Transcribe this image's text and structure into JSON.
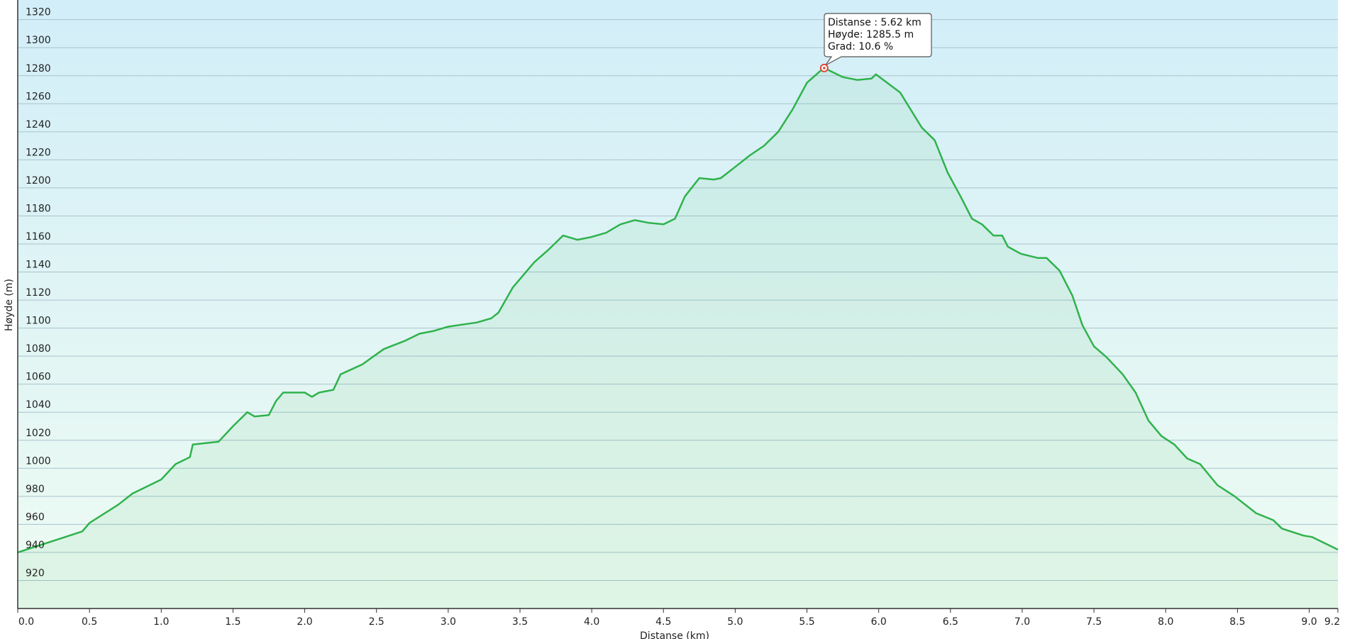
{
  "chart_data": {
    "type": "area",
    "y_label": "Høyde (m)",
    "x_label": "Distanse  (km)",
    "x": [
      0.0,
      0.3,
      0.45,
      0.5,
      0.7,
      0.8,
      1.0,
      1.1,
      1.2,
      1.22,
      1.4,
      1.5,
      1.6,
      1.65,
      1.75,
      1.8,
      1.85,
      2.0,
      2.05,
      2.1,
      2.2,
      2.25,
      2.4,
      2.55,
      2.6,
      2.7,
      2.8,
      2.9,
      3.0,
      3.2,
      3.3,
      3.35,
      3.45,
      3.5,
      3.6,
      3.7,
      3.75,
      3.8,
      3.9,
      4.0,
      4.1,
      4.2,
      4.3,
      4.4,
      4.5,
      4.58,
      4.65,
      4.75,
      4.85,
      4.9,
      5.0,
      5.1,
      5.2,
      5.3,
      5.4,
      5.5,
      5.6,
      5.62,
      5.75,
      5.85,
      5.95,
      5.98,
      6.15,
      6.3,
      6.39,
      6.48,
      6.57,
      6.65,
      6.72,
      6.8,
      6.86,
      6.9,
      6.99,
      7.11,
      7.17,
      7.26,
      7.35,
      7.42,
      7.5,
      7.59,
      7.7,
      7.79,
      7.88,
      7.97,
      8.06,
      8.15,
      8.24,
      8.36,
      8.48,
      8.63,
      8.75,
      8.81,
      8.96,
      9.02,
      9.2
    ],
    "values": [
      940,
      950,
      955,
      961,
      974,
      982,
      992,
      1003,
      1008,
      1017,
      1019,
      1030,
      1040,
      1037,
      1038,
      1048,
      1054,
      1054,
      1051,
      1054,
      1056,
      1067,
      1074,
      1085,
      1087,
      1091,
      1096,
      1098,
      1101,
      1104,
      1107,
      1111,
      1129,
      1135,
      1147,
      1156,
      1161,
      1166,
      1163,
      1165,
      1168,
      1174,
      1177,
      1175,
      1174,
      1178,
      1194,
      1207,
      1206,
      1207,
      1215,
      1223,
      1230,
      1240,
      1256,
      1275,
      1284,
      1285.5,
      1279,
      1277,
      1278,
      1281,
      1268,
      1243,
      1234,
      1211,
      1194,
      1178,
      1174,
      1166,
      1166,
      1158,
      1153,
      1150,
      1150,
      1141,
      1123,
      1102,
      1087,
      1079,
      1067,
      1054,
      1034,
      1023,
      1017,
      1007,
      1003,
      988,
      980,
      968,
      963,
      957,
      952,
      951,
      942
    ],
    "color": "#2fb24c",
    "xlim": [
      0,
      9.2
    ],
    "ylim": [
      900,
      1334
    ],
    "xticks": [
      {
        "value": 0,
        "label": "0.0"
      },
      0.5,
      {
        "value": 1,
        "label": "1.0"
      },
      1.5,
      {
        "value": 2,
        "label": "2.0"
      },
      2.5,
      {
        "value": 3,
        "label": "3.0"
      },
      3.5,
      {
        "value": 4,
        "label": "4.0"
      },
      4.5,
      {
        "value": 5,
        "label": "5.0"
      },
      5.5,
      {
        "value": 6,
        "label": "6.0"
      },
      6.5,
      {
        "value": 7,
        "label": "7.0"
      },
      7.5,
      {
        "value": 8,
        "label": "8.0"
      },
      8.5,
      {
        "value": 9,
        "label": "9.0"
      },
      9.2
    ],
    "yticks": [
      920,
      940,
      960,
      980,
      1000,
      1020,
      1040,
      1060,
      1080,
      1100,
      1120,
      1140,
      1160,
      1180,
      1200,
      1220,
      1240,
      1260,
      1280,
      1300,
      1320
    ],
    "grid": true,
    "marker": {
      "x": 5.62,
      "y": 1285.5
    },
    "tooltip": [
      "Distanse : 5.62 km",
      "Høyde: 1285.5 m",
      "Grad: 10.6 %"
    ]
  }
}
